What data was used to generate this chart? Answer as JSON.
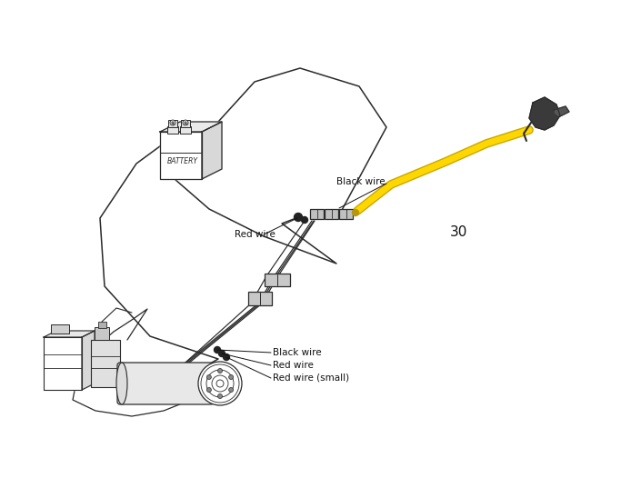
{
  "bg_color": "#ffffff",
  "line_color": "#2a2a2a",
  "wire_yellow": "#FFD700",
  "wire_yellow_outline": "#c8a800",
  "text_color": "#111111",
  "label_black_wire_top": "Black wire",
  "label_red_wire_top": "Red wire",
  "label_black_wire_bot": "Black wire",
  "label_red_wire_bot": "Red wire",
  "label_red_wire_small": "Red wire (small)",
  "label_30": "30",
  "battery_text": "BATTERY",
  "font_size": 7.5,
  "label30_fontsize": 11
}
